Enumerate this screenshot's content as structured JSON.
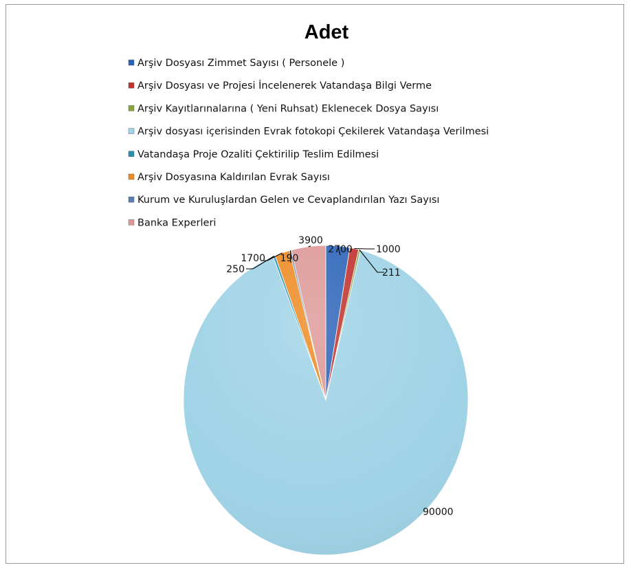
{
  "chart_data": {
    "type": "pie",
    "title": "Adet",
    "legend_position": "top",
    "series": [
      {
        "name": "Arşiv Dosyası Zimmet Sayısı ( Personele )",
        "value": 2700,
        "color": "#2b63b8"
      },
      {
        "name": "Arşiv Dosyası ve Projesi İncelenerek Vatandaşa Bilgi Verme",
        "value": 1000,
        "color": "#c0322f"
      },
      {
        "name": "Arşiv Kayıtlarınalarına ( Yeni Ruhsat) Eklenecek Dosya Sayısı",
        "value": 211,
        "color": "#88a53c"
      },
      {
        "name": "Arşiv dosyası içerisinden Evrak fotokopi Çekilerek Vatandaşa Verilmesi",
        "value": 90000,
        "color": "#9fd3e6"
      },
      {
        "name": "Vatandaşa Proje Ozaliti Çektirilip Teslim Edilmesi",
        "value": 250,
        "color": "#2791b3"
      },
      {
        "name": "Arşiv Dosyasına Kaldırılan Evrak Sayısı",
        "value": 1700,
        "color": "#ee8a22"
      },
      {
        "name": "Kurum ve Kuruluşlardan Gelen ve Cevaplandırılan Yazı Sayısı",
        "value": 190,
        "color": "#5a7eb0"
      },
      {
        "name": "Banka Experleri",
        "value": 3900,
        "color": "#dc9896"
      }
    ],
    "data_labels": [
      "2700",
      "1000",
      "211",
      "90000",
      "250",
      "1700",
      "190",
      "3900"
    ]
  }
}
